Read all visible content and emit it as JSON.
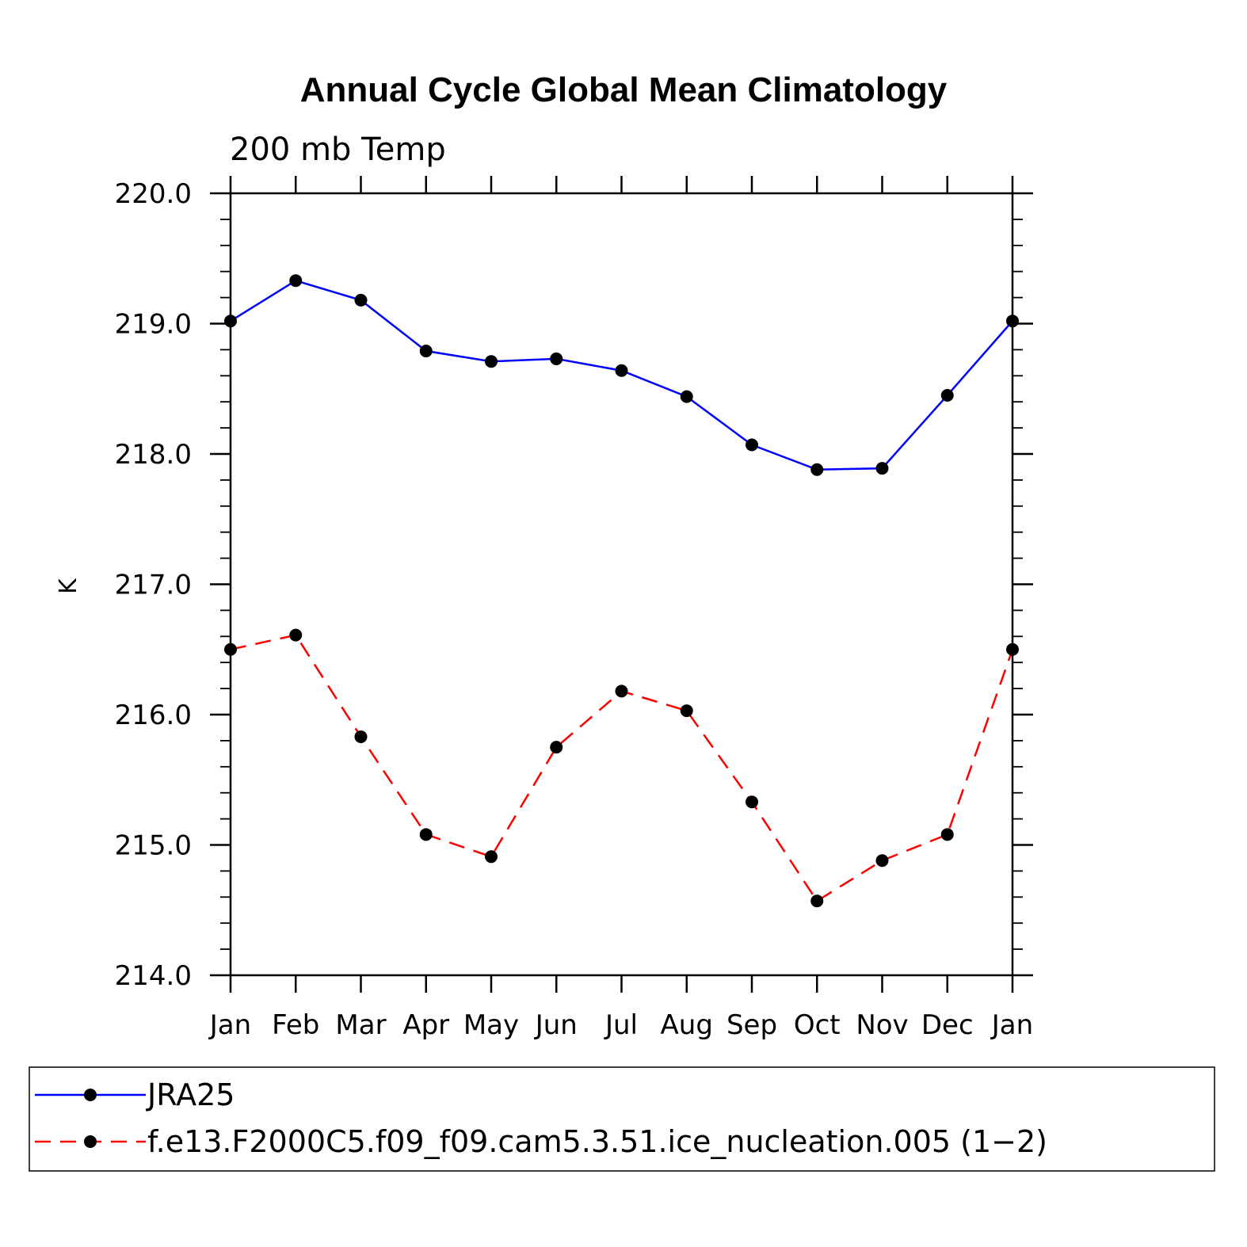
{
  "chart_data": {
    "type": "line",
    "title": "Annual Cycle Global Mean Climatology",
    "subtitle": "200 mb Temp",
    "xlabel": "",
    "ylabel": "K",
    "categories": [
      "Jan",
      "Feb",
      "Mar",
      "Apr",
      "May",
      "Jun",
      "Jul",
      "Aug",
      "Sep",
      "Oct",
      "Nov",
      "Dec",
      "Jan"
    ],
    "ylim": [
      214.0,
      220.0
    ],
    "yticks": [
      "214.0",
      "215.0",
      "216.0",
      "217.0",
      "218.0",
      "219.0",
      "220.0"
    ],
    "grid": false,
    "legend_position": "bottom",
    "series": [
      {
        "name": "JRA25",
        "color": "#0000ff",
        "dash": "solid",
        "values": [
          219.02,
          219.33,
          219.18,
          218.79,
          218.71,
          218.73,
          218.64,
          218.44,
          218.07,
          217.88,
          217.89,
          218.45,
          219.02
        ]
      },
      {
        "name": "f.e13.F2000C5.f09_f09.cam5.3.51.ice_nucleation.005 (1−2)",
        "color": "#ff0000",
        "dash": "dashed",
        "values": [
          216.5,
          216.61,
          215.83,
          215.08,
          214.91,
          215.75,
          216.18,
          216.03,
          215.33,
          214.57,
          214.88,
          215.08,
          216.5
        ]
      }
    ]
  }
}
